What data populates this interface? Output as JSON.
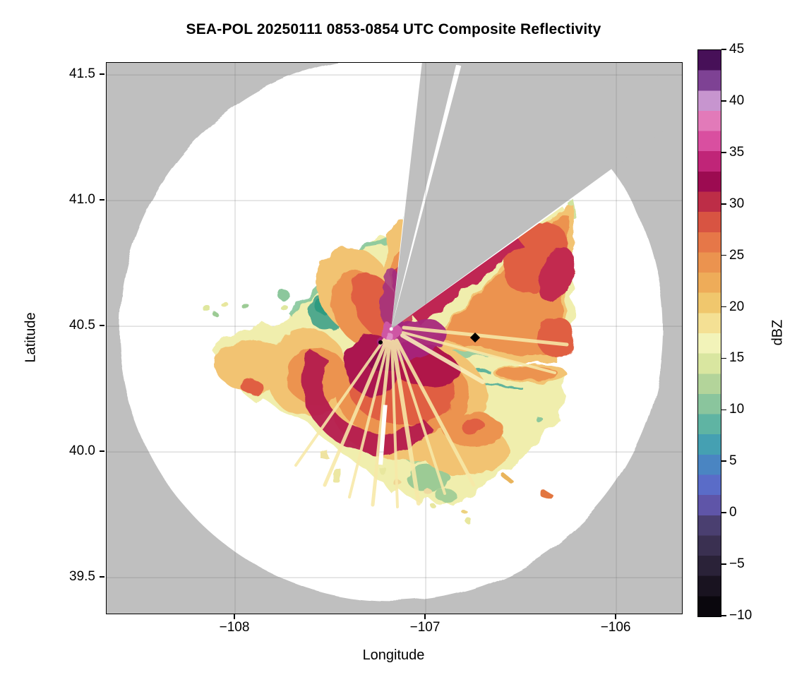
{
  "figure_title": "SEA-POL 20250111 0853-0854 UTC Composite Reflectivity",
  "chart_data": {
    "type": "heatmap",
    "subtype": "radar-composite-reflectivity-ppi",
    "title": "SEA-POL 20250111 0853-0854 UTC Composite Reflectivity",
    "xlabel": "Longitude",
    "ylabel": "Latitude",
    "xlim": [
      -108.674,
      -105.656
    ],
    "ylim": [
      39.357,
      41.548
    ],
    "grid": true,
    "x_ticks": [
      {
        "value": -108,
        "label": "−108"
      },
      {
        "value": -107,
        "label": "−107"
      },
      {
        "value": -106,
        "label": "−106"
      }
    ],
    "y_ticks": [
      {
        "value": 41.5,
        "label": "41.5"
      },
      {
        "value": 41.0,
        "label": "41.0"
      },
      {
        "value": 40.5,
        "label": "40.5"
      },
      {
        "value": 40.0,
        "label": "40.0"
      },
      {
        "value": 39.5,
        "label": "39.5"
      }
    ],
    "colorbar": {
      "label": "dBZ",
      "vmin": -10,
      "vmax": 45,
      "ticks": [
        {
          "value": 45,
          "label": "45"
        },
        {
          "value": 40,
          "label": "40"
        },
        {
          "value": 35,
          "label": "35"
        },
        {
          "value": 30,
          "label": "30"
        },
        {
          "value": 25,
          "label": "25"
        },
        {
          "value": 20,
          "label": "20"
        },
        {
          "value": 15,
          "label": "15"
        },
        {
          "value": 10,
          "label": "10"
        },
        {
          "value": 5,
          "label": "5"
        },
        {
          "value": 0,
          "label": "0"
        },
        {
          "value": -5,
          "label": "−5"
        },
        {
          "value": -10,
          "label": "−10"
        }
      ],
      "band_colors_bottom_to_top": [
        "#0a070d",
        "#191320",
        "#2a2238",
        "#3a3051",
        "#4a3f70",
        "#5f55a8",
        "#5a6cc8",
        "#4a85c2",
        "#45a0b2",
        "#5fb4a3",
        "#8ac59d",
        "#b3d49a",
        "#d9e6a0",
        "#f2f3b9",
        "#f4e094",
        "#f0c76d",
        "#eeac59",
        "#eb934f",
        "#e67748",
        "#d85442",
        "#bd2d47",
        "#9c0b51",
        "#c02578",
        "#d94fa0",
        "#e27ab9",
        "#c795cf",
        "#7e4294",
        "#471058"
      ]
    },
    "radar": {
      "center_lon": -107.181,
      "center_lat": 40.489,
      "max_range_deg_lon": 1.427,
      "blocked_azimuth_sectors_deg": [
        [
          6.6,
          13.8
        ],
        [
          14.9,
          54.0
        ]
      ],
      "no_data_ray": {
        "azimuth_deg": 184.5,
        "r0_frac": 0.28,
        "r1_frac": 0.5
      }
    },
    "markers": [
      {
        "shape": "diamond",
        "lon": -106.741,
        "lat": 40.455,
        "color": "#000000"
      },
      {
        "shape": "dot",
        "lon": -107.237,
        "lat": 40.436,
        "color": "#000000"
      },
      {
        "shape": "radar-site",
        "lon": -107.181,
        "lat": 40.489,
        "color": "#ffffff"
      }
    ],
    "echo_regions": [
      {
        "feature": "storm core adjacent to radar",
        "approx_lon": -107.15,
        "approx_lat": 40.47,
        "dbz": "35-45"
      },
      {
        "feature": "inner crimson ring around core",
        "dbz": "28-34"
      },
      {
        "feature": "broad orange shield west and south of radar",
        "dbz": "20-28"
      },
      {
        "feature": "pale yellow / green fringe on north and southeast edges",
        "dbz": "8-18"
      },
      {
        "feature": "northeast lobe beyond blocked sector",
        "dbz": "18-34"
      },
      {
        "feature": "scattered small cells to the south",
        "dbz": "12-22"
      },
      {
        "feature": "radial bright-ray artifacts from radar site",
        "dbz": "15-20"
      }
    ]
  },
  "colors": {
    "no_data": "#bfbfbf",
    "coverage": "#ffffff",
    "grid_rgba": "rgba(110,110,110,0.28)",
    "spine": "#000000"
  }
}
